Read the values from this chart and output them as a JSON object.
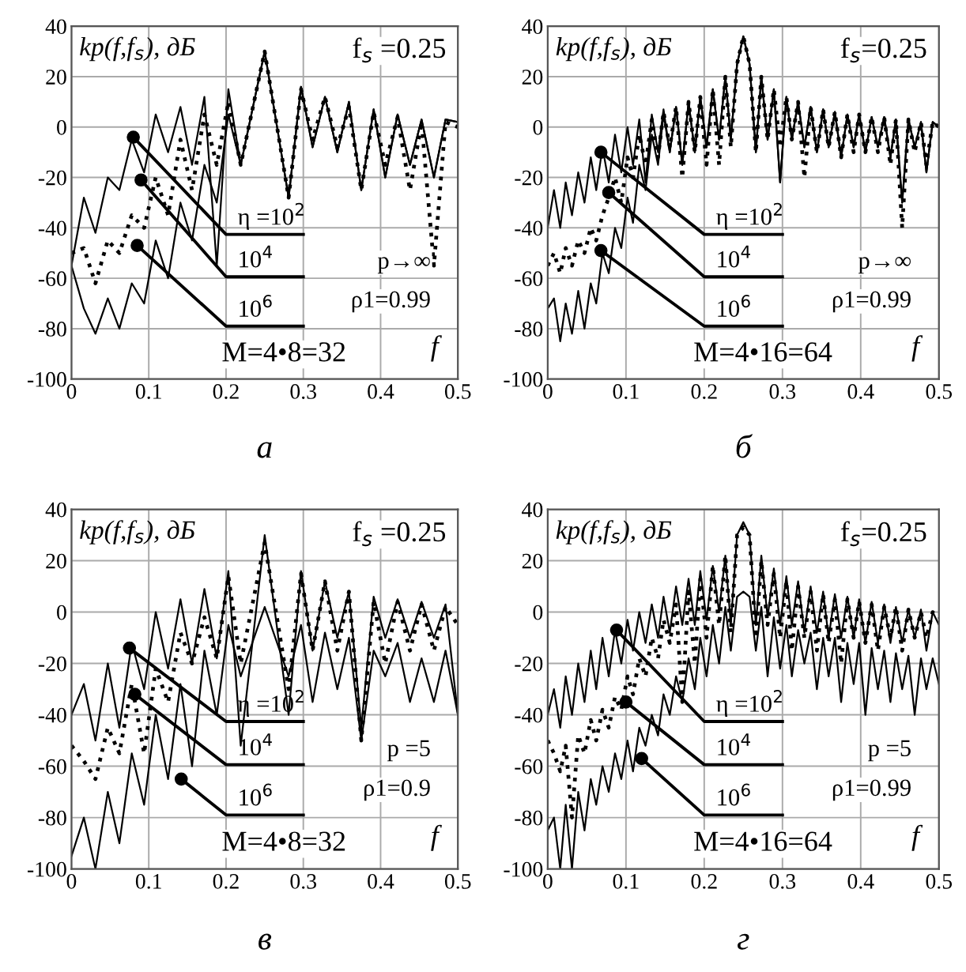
{
  "chart_data": [
    {
      "type": "line",
      "title": "а",
      "ylabel": "kp(f,f$_{s}$), дБ",
      "xlabel": "f",
      "xlim": [
        0,
        0.5
      ],
      "ylim": [
        -100,
        40
      ],
      "xticks": [
        0,
        0.1,
        0.2,
        0.3,
        0.4,
        0.5
      ],
      "yticks": [
        -100,
        -80,
        -60,
        -40,
        -20,
        0,
        20,
        40
      ],
      "grid": true,
      "x": [
        0,
        0.016,
        0.031,
        0.047,
        0.062,
        0.078,
        0.094,
        0.109,
        0.125,
        0.141,
        0.156,
        0.172,
        0.188,
        0.203,
        0.219,
        0.25,
        0.281,
        0.297,
        0.312,
        0.328,
        0.344,
        0.359,
        0.375,
        0.391,
        0.406,
        0.422,
        0.438,
        0.453,
        0.469,
        0.484,
        0.5
      ],
      "series": [
        {
          "color": "#000000",
          "line_style": "solid",
          "values": [
            -55,
            -28,
            -42,
            -20,
            -25,
            -5,
            -18,
            5,
            -10,
            8,
            -15,
            12,
            -55,
            15,
            -15,
            30,
            -28,
            16,
            -8,
            12,
            -10,
            10,
            -25,
            7,
            -20,
            5,
            -15,
            3,
            -20,
            3,
            2
          ]
        },
        {
          "color": "#000000",
          "line_style": "dotted",
          "values": [
            -50,
            -48,
            -62,
            -45,
            -50,
            -35,
            -40,
            -20,
            -35,
            -5,
            -25,
            5,
            -15,
            10,
            -15,
            30,
            -28,
            15,
            -5,
            12,
            -8,
            8,
            -25,
            6,
            -15,
            4,
            -25,
            2,
            -55,
            2,
            0
          ]
        },
        {
          "color": "#000000",
          "line_style": "solid",
          "values": [
            -55,
            -72,
            -82,
            -68,
            -80,
            -62,
            -70,
            -45,
            -60,
            -30,
            -45,
            -15,
            -30,
            5,
            -15,
            30,
            -28,
            16,
            -8,
            12,
            -10,
            10,
            -25,
            7,
            -20,
            5,
            -15,
            3,
            -20,
            3,
            2
          ]
        }
      ],
      "annotations": [
        {
          "text": "η =10$^{2}$",
          "x": 0.08,
          "y": -4
        },
        {
          "text": "10$^{4}$",
          "x": 0.09,
          "y": -21
        },
        {
          "text": "10$^{6}$",
          "x": 0.085,
          "y": -47
        },
        "f$_{s}$ =0.25",
        "p→∞",
        "ρ1=0.99",
        "M=4•8=32"
      ]
    },
    {
      "type": "line",
      "title": "б",
      "ylabel": "kp(f,f$_{s}$), дБ",
      "xlabel": "f",
      "xlim": [
        0,
        0.5
      ],
      "ylim": [
        -100,
        40
      ],
      "xticks": [
        0,
        0.1,
        0.2,
        0.3,
        0.4,
        0.5
      ],
      "yticks": [
        -100,
        -80,
        -60,
        -40,
        -20,
        0,
        20,
        40
      ],
      "grid": true,
      "x": [
        0,
        0.008,
        0.016,
        0.023,
        0.031,
        0.039,
        0.047,
        0.055,
        0.062,
        0.07,
        0.078,
        0.086,
        0.094,
        0.102,
        0.109,
        0.117,
        0.125,
        0.133,
        0.141,
        0.148,
        0.156,
        0.164,
        0.172,
        0.18,
        0.188,
        0.195,
        0.203,
        0.211,
        0.219,
        0.227,
        0.234,
        0.242,
        0.25,
        0.258,
        0.266,
        0.273,
        0.281,
        0.289,
        0.297,
        0.305,
        0.312,
        0.32,
        0.328,
        0.336,
        0.344,
        0.352,
        0.359,
        0.367,
        0.375,
        0.383,
        0.391,
        0.398,
        0.406,
        0.414,
        0.422,
        0.43,
        0.438,
        0.445,
        0.453,
        0.461,
        0.469,
        0.477,
        0.484,
        0.492,
        0.5
      ],
      "series": [
        {
          "color": "#000000",
          "line_style": "solid",
          "values": [
            -40,
            -25,
            -40,
            -22,
            -35,
            -18,
            -30,
            -12,
            -25,
            -8,
            -22,
            -3,
            -18,
            0,
            -15,
            3,
            -22,
            5,
            -10,
            7,
            -10,
            8,
            -15,
            10,
            -10,
            12,
            -8,
            15,
            -5,
            20,
            -5,
            25,
            36,
            25,
            -10,
            20,
            -5,
            15,
            -22,
            12,
            -5,
            10,
            -8,
            8,
            -10,
            7,
            -8,
            6,
            -12,
            5,
            -8,
            5,
            -10,
            4,
            -8,
            4,
            -12,
            3,
            -30,
            3,
            -8,
            2,
            -18,
            2,
            0
          ]
        },
        {
          "color": "#000000",
          "line_style": "dotted",
          "values": [
            -55,
            -50,
            -58,
            -48,
            -55,
            -45,
            -50,
            -40,
            -45,
            -35,
            -28,
            -20,
            -30,
            -12,
            -20,
            -3,
            -15,
            3,
            -12,
            6,
            -8,
            8,
            -20,
            10,
            -10,
            12,
            -15,
            15,
            -15,
            20,
            -8,
            25,
            36,
            25,
            -10,
            20,
            -5,
            15,
            -8,
            12,
            -5,
            10,
            -20,
            8,
            -10,
            7,
            -8,
            6,
            -12,
            5,
            -10,
            5,
            -10,
            4,
            -10,
            4,
            -15,
            3,
            -40,
            3,
            -10,
            2,
            -15,
            2,
            0
          ]
        },
        {
          "color": "#000000",
          "line_style": "solid",
          "values": [
            -72,
            -68,
            -85,
            -70,
            -82,
            -65,
            -80,
            -62,
            -70,
            -50,
            -58,
            -40,
            -48,
            -28,
            -38,
            -15,
            -25,
            -3,
            -15,
            5,
            -10,
            8,
            -15,
            10,
            -10,
            12,
            -8,
            15,
            -5,
            20,
            -5,
            25,
            36,
            25,
            -10,
            20,
            -5,
            15,
            -22,
            12,
            -5,
            10,
            -8,
            8,
            -10,
            7,
            -8,
            6,
            -12,
            5,
            -8,
            5,
            -10,
            4,
            -8,
            4,
            -12,
            3,
            -30,
            3,
            -8,
            2,
            -18,
            2,
            0
          ]
        }
      ],
      "annotations": [
        {
          "text": "η =10$^{2}$",
          "x": 0.068,
          "y": -10
        },
        {
          "text": "10$^{4}$",
          "x": 0.078,
          "y": -26
        },
        {
          "text": "10$^{6}$",
          "x": 0.068,
          "y": -49
        },
        "f$_{s}$=0.25",
        "p→∞",
        "ρ1=0.99",
        "M=4•16=64"
      ]
    },
    {
      "type": "line",
      "title": "в",
      "ylabel": "kp(f,f$_{s}$), дБ",
      "xlabel": "f",
      "xlim": [
        0,
        0.5
      ],
      "ylim": [
        -100,
        40
      ],
      "xticks": [
        0,
        0.1,
        0.2,
        0.3,
        0.4,
        0.5
      ],
      "yticks": [
        -100,
        -80,
        -60,
        -40,
        -20,
        0,
        20,
        40
      ],
      "grid": true,
      "x": [
        0,
        0.016,
        0.031,
        0.047,
        0.062,
        0.078,
        0.094,
        0.109,
        0.125,
        0.141,
        0.156,
        0.172,
        0.188,
        0.203,
        0.219,
        0.25,
        0.281,
        0.297,
        0.312,
        0.328,
        0.344,
        0.359,
        0.375,
        0.391,
        0.406,
        0.422,
        0.438,
        0.453,
        0.469,
        0.484,
        0.5
      ],
      "series": [
        {
          "color": "#000000",
          "line_style": "solid",
          "values": [
            -40,
            -28,
            -50,
            -20,
            -45,
            -12,
            -30,
            0,
            -22,
            5,
            -20,
            9,
            -18,
            16,
            -52,
            30,
            -40,
            16,
            -15,
            12,
            -10,
            8,
            -45,
            6,
            -10,
            5,
            -10,
            4,
            -10,
            3,
            -40
          ]
        },
        {
          "color": "#000000",
          "line_style": "dotted",
          "values": [
            -52,
            -58,
            -65,
            -45,
            -55,
            -28,
            -55,
            -22,
            -35,
            -8,
            -20,
            -2,
            -18,
            14,
            -20,
            27,
            -30,
            15,
            -15,
            12,
            -15,
            8,
            -50,
            4,
            -20,
            4,
            -15,
            3,
            -15,
            2,
            -5
          ]
        },
        {
          "color": "#000000",
          "line_style": "solid",
          "values": [
            -95,
            -80,
            -100,
            -70,
            -90,
            -55,
            -75,
            -40,
            -65,
            -28,
            -60,
            -15,
            -40,
            -5,
            -25,
            2,
            -25,
            -5,
            -35,
            -8,
            -30,
            -10,
            -50,
            -15,
            -25,
            -12,
            -35,
            -18,
            -35,
            -15,
            -40
          ]
        }
      ],
      "annotations": [
        {
          "text": "η =10$^{2}$",
          "x": 0.075,
          "y": -14
        },
        {
          "text": "10$^{4}$",
          "x": 0.082,
          "y": -32
        },
        {
          "text": "10$^{6}$",
          "x": 0.142,
          "y": -65
        },
        "f$_{s}$ =0.25",
        "p =5",
        "ρ1=0.9",
        "M=4•8=32"
      ]
    },
    {
      "type": "line",
      "title": "г",
      "ylabel": "kp(f,f$_{s}$), дБ",
      "xlabel": "f",
      "xlim": [
        0,
        0.5
      ],
      "ylim": [
        -100,
        40
      ],
      "xticks": [
        0,
        0.1,
        0.2,
        0.3,
        0.4,
        0.5
      ],
      "yticks": [
        -100,
        -80,
        -60,
        -40,
        -20,
        0,
        20,
        40
      ],
      "grid": true,
      "x": [
        0,
        0.008,
        0.016,
        0.023,
        0.031,
        0.039,
        0.047,
        0.055,
        0.062,
        0.07,
        0.078,
        0.086,
        0.094,
        0.102,
        0.109,
        0.117,
        0.125,
        0.133,
        0.141,
        0.148,
        0.156,
        0.164,
        0.172,
        0.18,
        0.188,
        0.195,
        0.203,
        0.211,
        0.219,
        0.227,
        0.234,
        0.242,
        0.25,
        0.258,
        0.266,
        0.273,
        0.281,
        0.289,
        0.297,
        0.305,
        0.312,
        0.32,
        0.328,
        0.336,
        0.344,
        0.352,
        0.359,
        0.367,
        0.375,
        0.383,
        0.391,
        0.398,
        0.406,
        0.414,
        0.422,
        0.43,
        0.438,
        0.445,
        0.453,
        0.461,
        0.469,
        0.477,
        0.484,
        0.492,
        0.5
      ],
      "series": [
        {
          "color": "#000000",
          "line_style": "solid",
          "values": [
            -40,
            -30,
            -45,
            -25,
            -40,
            -20,
            -35,
            -15,
            -30,
            -10,
            -25,
            -7,
            -20,
            -3,
            -15,
            0,
            -12,
            3,
            -10,
            6,
            -8,
            10,
            -5,
            13,
            -5,
            16,
            -3,
            18,
            0,
            22,
            -5,
            30,
            35,
            30,
            -5,
            22,
            -2,
            17,
            -5,
            14,
            -5,
            12,
            -8,
            10,
            -8,
            8,
            -10,
            7,
            -10,
            6,
            -10,
            5,
            -12,
            4,
            -12,
            3,
            -12,
            2,
            -12,
            1,
            -10,
            1,
            -15,
            0,
            -5
          ]
        },
        {
          "color": "#000000",
          "line_style": "dotted",
          "values": [
            -50,
            -55,
            -62,
            -52,
            -80,
            -48,
            -55,
            -42,
            -50,
            -38,
            -45,
            -33,
            -38,
            -25,
            -32,
            -18,
            -25,
            -10,
            -18,
            -3,
            -12,
            3,
            -35,
            8,
            -20,
            13,
            -10,
            18,
            -5,
            22,
            -8,
            30,
            33,
            30,
            -10,
            20,
            -5,
            15,
            -10,
            12,
            -15,
            10,
            -10,
            8,
            -15,
            7,
            -12,
            5,
            -20,
            5,
            -10,
            4,
            -12,
            3,
            -15,
            2,
            -10,
            2,
            -15,
            1,
            -10,
            0,
            -10,
            0,
            -2
          ]
        },
        {
          "color": "#000000",
          "line_style": "solid",
          "values": [
            -85,
            -80,
            -100,
            -75,
            -100,
            -70,
            -85,
            -65,
            -75,
            -60,
            -70,
            -55,
            -65,
            -50,
            -62,
            -45,
            -52,
            -40,
            -48,
            -32,
            -40,
            -25,
            -35,
            -18,
            -30,
            -10,
            -25,
            -5,
            -20,
            2,
            -15,
            6,
            8,
            6,
            -15,
            2,
            -25,
            -2,
            -22,
            -5,
            -25,
            -7,
            -20,
            -8,
            -30,
            -10,
            -25,
            -10,
            -35,
            -12,
            -28,
            -12,
            -40,
            -14,
            -30,
            -15,
            -35,
            -16,
            -30,
            -17,
            -40,
            -18,
            -30,
            -18,
            -28
          ]
        }
      ],
      "annotations": [
        {
          "text": "η =10$^{2}$",
          "x": 0.088,
          "y": -7
        },
        {
          "text": "10$^{4}$",
          "x": 0.1,
          "y": -35
        },
        {
          "text": "10$^{6}$",
          "x": 0.12,
          "y": -57
        },
        "f$_{s}$=0.25",
        "p =5",
        "ρ1=0.99",
        "M=4•16=64"
      ]
    }
  ]
}
